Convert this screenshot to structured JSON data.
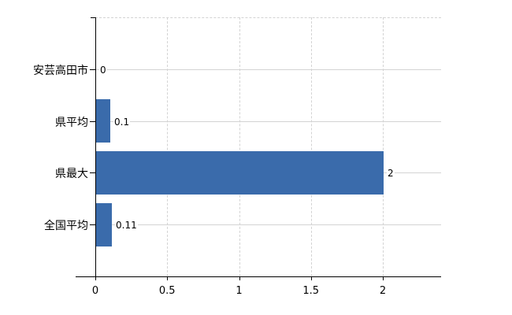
{
  "chart_data": {
    "type": "bar",
    "orientation": "horizontal",
    "title": "",
    "xlabel": "",
    "ylabel": "",
    "categories": [
      "安芸高田市",
      "県平均",
      "県最大",
      "全国平均"
    ],
    "values": [
      0,
      0.1,
      2,
      0.11
    ],
    "value_labels": [
      "0",
      "0.1",
      "2",
      "0.11"
    ],
    "x_ticks": [
      0,
      0.5,
      1,
      1.5,
      2
    ],
    "x_tick_labels": [
      "0",
      "0.5",
      "1",
      "1.5",
      "2"
    ],
    "xlim": [
      0,
      2.4
    ],
    "legend": "none",
    "grid": {
      "vertical_gridlines": "dashed",
      "horizontal_gridlines": "solid"
    },
    "colors": {
      "bar": "#3a6bab",
      "grid": "#d3d3d3",
      "axis": "#000000",
      "text": "#000000",
      "background": "#ffffff"
    }
  }
}
